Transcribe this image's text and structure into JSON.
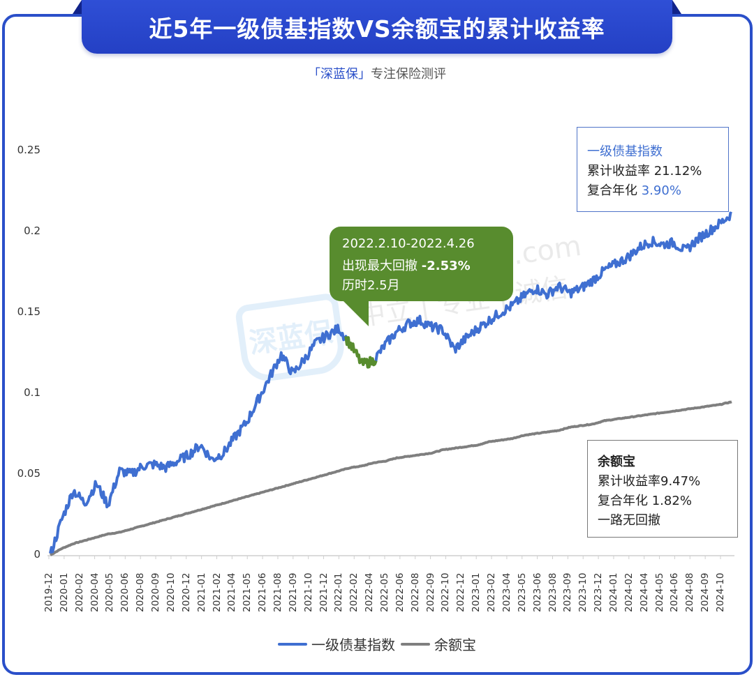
{
  "header": {
    "title": "近5年一级债基指数VS余额宝的累计收益率",
    "subtitle_brand": "「深蓝保」",
    "subtitle_text": "专注保险测评"
  },
  "colors": {
    "frame": "#2a4fc9",
    "bond_index": "#3f6fd1",
    "yuebao": "#7f7f7f",
    "drawdown": "#588c2e",
    "callout_bg": "#588c2e"
  },
  "annotations": {
    "bond_box": {
      "name": "一级债基指数",
      "cumulative_label": "累计收益率",
      "cumulative_value": "21.12%",
      "annualized_label": "复合年化",
      "annualized_value": "3.90%"
    },
    "yuebao_box": {
      "name": "余额宝",
      "cumulative_label": "累计收益率",
      "cumulative_value": "9.47%",
      "annualized_label": "复合年化",
      "annualized_value": "1.82%",
      "note": "一路无回撤"
    },
    "drawdown_callout": {
      "period": "2022.2.10-2022.4.26",
      "label": "出现最大回撤",
      "value": "-2.53%",
      "duration": "历时2.5月"
    }
  },
  "watermark": {
    "logo": "深蓝保",
    "url": "shenlanbao.com",
    "slogan": "中立 | 专业 | 诚信"
  },
  "legend": [
    {
      "label": "一级债基指数",
      "color": "#3f6fd1"
    },
    {
      "label": "余额宝",
      "color": "#7f7f7f"
    }
  ],
  "chart_data": {
    "type": "line",
    "title": "近5年一级债基指数VS余额宝的累计收益率",
    "xlabel": "",
    "ylabel": "",
    "ylim": [
      0,
      0.25
    ],
    "yticks": [
      "0",
      "0.05",
      "0.1",
      "0.15",
      "0.2",
      "0.25"
    ],
    "grid": false,
    "legend_position": "bottom",
    "x_tick_labels": [
      "2019-12",
      "2020-01",
      "2020-02",
      "2020-04",
      "2020-05",
      "2020-06",
      "2020-08",
      "2020-09",
      "2020-10",
      "2020-12",
      "2021-01",
      "2021-02",
      "2021-04",
      "2021-05",
      "2021-06",
      "2021-08",
      "2021-09",
      "2021-10",
      "2021-12",
      "2022-01",
      "2022-02",
      "2022-04",
      "2022-05",
      "2022-06",
      "2022-08",
      "2022-09",
      "2022-10",
      "2022-12",
      "2023-01",
      "2023-02",
      "2023-04",
      "2023-05",
      "2023-06",
      "2023-08",
      "2023-09",
      "2023-10",
      "2023-12",
      "2024-01",
      "2024-02",
      "2024-04",
      "2024-05",
      "2024-06",
      "2024-08",
      "2024-09",
      "2024-10"
    ],
    "x": [
      "2019-12",
      "2020-01",
      "2020-02",
      "2020-03",
      "2020-04",
      "2020-05",
      "2020-06",
      "2020-07",
      "2020-08",
      "2020-09",
      "2020-10",
      "2020-11",
      "2020-12",
      "2021-01",
      "2021-02",
      "2021-03",
      "2021-04",
      "2021-05",
      "2021-06",
      "2021-07",
      "2021-08",
      "2021-09",
      "2021-10",
      "2021-11",
      "2021-12",
      "2022-01",
      "2022-02",
      "2022-03",
      "2022-04",
      "2022-05",
      "2022-06",
      "2022-07",
      "2022-08",
      "2022-09",
      "2022-10",
      "2022-11",
      "2022-12",
      "2023-01",
      "2023-02",
      "2023-03",
      "2023-04",
      "2023-05",
      "2023-06",
      "2023-07",
      "2023-08",
      "2023-09",
      "2023-10",
      "2023-11",
      "2023-12",
      "2024-01",
      "2024-02",
      "2024-03",
      "2024-04",
      "2024-05",
      "2024-06",
      "2024-07",
      "2024-08",
      "2024-09",
      "2024-10",
      "2024-11"
    ],
    "series": [
      {
        "name": "一级债基指数",
        "color": "#3f6fd1",
        "values": [
          0.0,
          0.022,
          0.04,
          0.032,
          0.044,
          0.031,
          0.052,
          0.05,
          0.055,
          0.056,
          0.054,
          0.058,
          0.062,
          0.068,
          0.059,
          0.063,
          0.073,
          0.082,
          0.096,
          0.11,
          0.124,
          0.112,
          0.121,
          0.131,
          0.136,
          0.14,
          0.13,
          0.118,
          0.12,
          0.13,
          0.138,
          0.143,
          0.145,
          0.141,
          0.139,
          0.127,
          0.134,
          0.14,
          0.145,
          0.15,
          0.154,
          0.16,
          0.165,
          0.161,
          0.166,
          0.162,
          0.165,
          0.17,
          0.176,
          0.18,
          0.184,
          0.19,
          0.194,
          0.192,
          0.193,
          0.188,
          0.195,
          0.2,
          0.205,
          0.211
        ]
      },
      {
        "name": "余额宝",
        "color": "#7f7f7f",
        "values": [
          0.0,
          0.004,
          0.007,
          0.009,
          0.011,
          0.013,
          0.014,
          0.016,
          0.018,
          0.02,
          0.022,
          0.024,
          0.026,
          0.028,
          0.03,
          0.032,
          0.034,
          0.036,
          0.038,
          0.04,
          0.042,
          0.044,
          0.046,
          0.048,
          0.05,
          0.052,
          0.054,
          0.055,
          0.057,
          0.058,
          0.06,
          0.061,
          0.062,
          0.063,
          0.065,
          0.066,
          0.067,
          0.068,
          0.07,
          0.071,
          0.072,
          0.074,
          0.075,
          0.076,
          0.077,
          0.079,
          0.08,
          0.081,
          0.083,
          0.084,
          0.085,
          0.086,
          0.087,
          0.088,
          0.089,
          0.09,
          0.091,
          0.092,
          0.093,
          0.0947
        ]
      }
    ],
    "highlight": {
      "series": "一级债基指数",
      "from": "2022-02",
      "to": "2022-04",
      "color": "#588c2e",
      "label": "2022.2.10-2022.4.26 出现最大回撤 -2.53% 历时2.5月"
    }
  }
}
